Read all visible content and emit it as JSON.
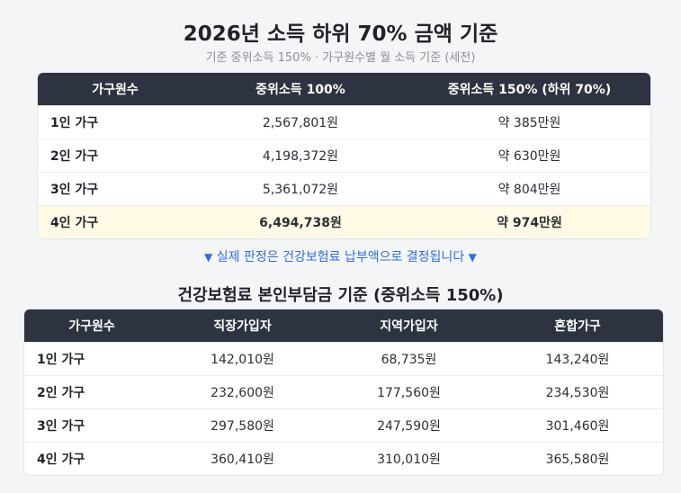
{
  "title": "2026년 소득 하위 70% 금액 기준",
  "subtitle": "기준 중위소득 150% · 가구원수별 월 소득 기준 (세전)",
  "income_table": {
    "headers": [
      "가구원수",
      "중위소득 100%",
      "중위소득 150% (하위 70%)"
    ],
    "rows": [
      [
        "1인 가구",
        "2,567,801원",
        "약 385만원"
      ],
      [
        "2인 가구",
        "4,198,372원",
        "약 630만원"
      ],
      [
        "3인 가구",
        "5,361,072원",
        "약 804만원"
      ],
      [
        "4인 가구",
        "6,494,738원",
        "약 974만원"
      ]
    ],
    "highlight_row": 3,
    "highlight_color": "#fff9e6"
  },
  "note": {
    "left_arrow": "▼",
    "text": "실제 판정은 건강보험료 납부액으로 결정됩니다",
    "right_arrow": "▼"
  },
  "insurance_title": "건강보험료 본인부담금 기준 (중위소득 150%)",
  "insurance_table": {
    "headers": [
      "가구원수",
      "직장가입자",
      "지역가입자",
      "혼합가구"
    ],
    "rows": [
      [
        "1인 가구",
        "142,010원",
        "68,735원",
        "143,240원"
      ],
      [
        "2인 가구",
        "232,600원",
        "177,560원",
        "234,530원"
      ],
      [
        "3인 가구",
        "297,580원",
        "247,590원",
        "301,460원"
      ],
      [
        "4인 가구",
        "360,410원",
        "310,010원",
        "365,580원"
      ]
    ]
  },
  "colors": {
    "header_bg": "#2d3340",
    "note_blue": "#2f6fde",
    "subtitle_gray": "#8a8f98"
  }
}
